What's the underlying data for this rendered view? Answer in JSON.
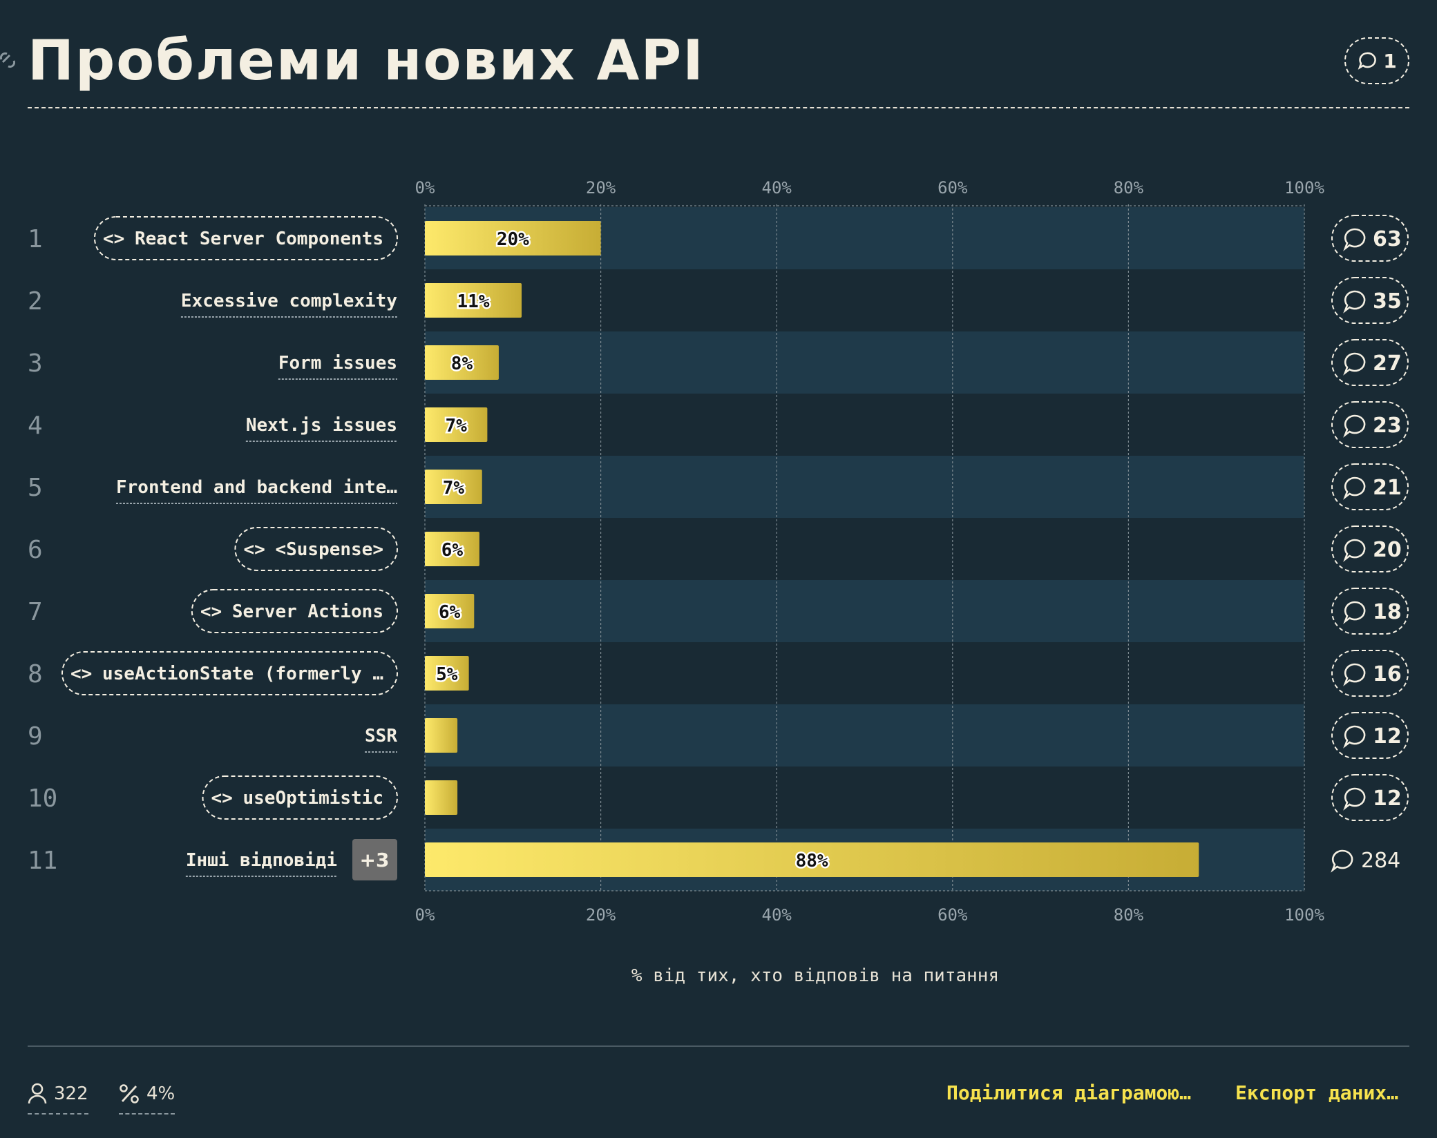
{
  "title": "Проблеми нових API",
  "title_comments": "1",
  "chart_data": {
    "type": "bar",
    "orientation": "horizontal",
    "xlim": [
      0,
      100
    ],
    "ticks": [
      "0%",
      "20%",
      "40%",
      "60%",
      "80%",
      "100%"
    ],
    "xlabel": "% від тих, хто відповів на питання",
    "rows": [
      {
        "rank": "1",
        "label": "React Server Components",
        "value": 20,
        "pct": "20%",
        "comments": "63",
        "code": true
      },
      {
        "rank": "2",
        "label": "Excessive complexity",
        "value": 11,
        "pct": "11%",
        "comments": "35",
        "code": false
      },
      {
        "rank": "3",
        "label": "Form issues",
        "value": 8.4,
        "pct": "8%",
        "comments": "27",
        "code": false
      },
      {
        "rank": "4",
        "label": "Next.js issues",
        "value": 7.1,
        "pct": "7%",
        "comments": "23",
        "code": false
      },
      {
        "rank": "5",
        "label": "Frontend and backend inte…",
        "value": 6.5,
        "pct": "7%",
        "comments": "21",
        "code": false
      },
      {
        "rank": "6",
        "label": "<Suspense>",
        "value": 6.2,
        "pct": "6%",
        "comments": "20",
        "code": true
      },
      {
        "rank": "7",
        "label": "Server Actions",
        "value": 5.6,
        "pct": "6%",
        "comments": "18",
        "code": true
      },
      {
        "rank": "8",
        "label": "useActionState (formerly …",
        "value": 5.0,
        "pct": "5%",
        "comments": "16",
        "code": true
      },
      {
        "rank": "9",
        "label": "SSR",
        "value": 3.7,
        "pct": "",
        "comments": "12",
        "code": false
      },
      {
        "rank": "10",
        "label": "useOptimistic",
        "value": 3.7,
        "pct": "",
        "comments": "12",
        "code": true
      },
      {
        "rank": "11",
        "label": "Інші відповіді",
        "value": 88,
        "pct": "88%",
        "comments": "284",
        "code": false,
        "extra": "+3"
      }
    ]
  },
  "footer": {
    "respondents": "322",
    "percent": "4%",
    "share_label": "Поділитися діаграмою…",
    "export_label": "Експорт даних…"
  },
  "colors": {
    "background": "#192a34",
    "row_alt": "#1f3a4a",
    "bar_start": "#fde96b",
    "bar_end": "#c7ad35",
    "accent": "#f6e24e"
  }
}
